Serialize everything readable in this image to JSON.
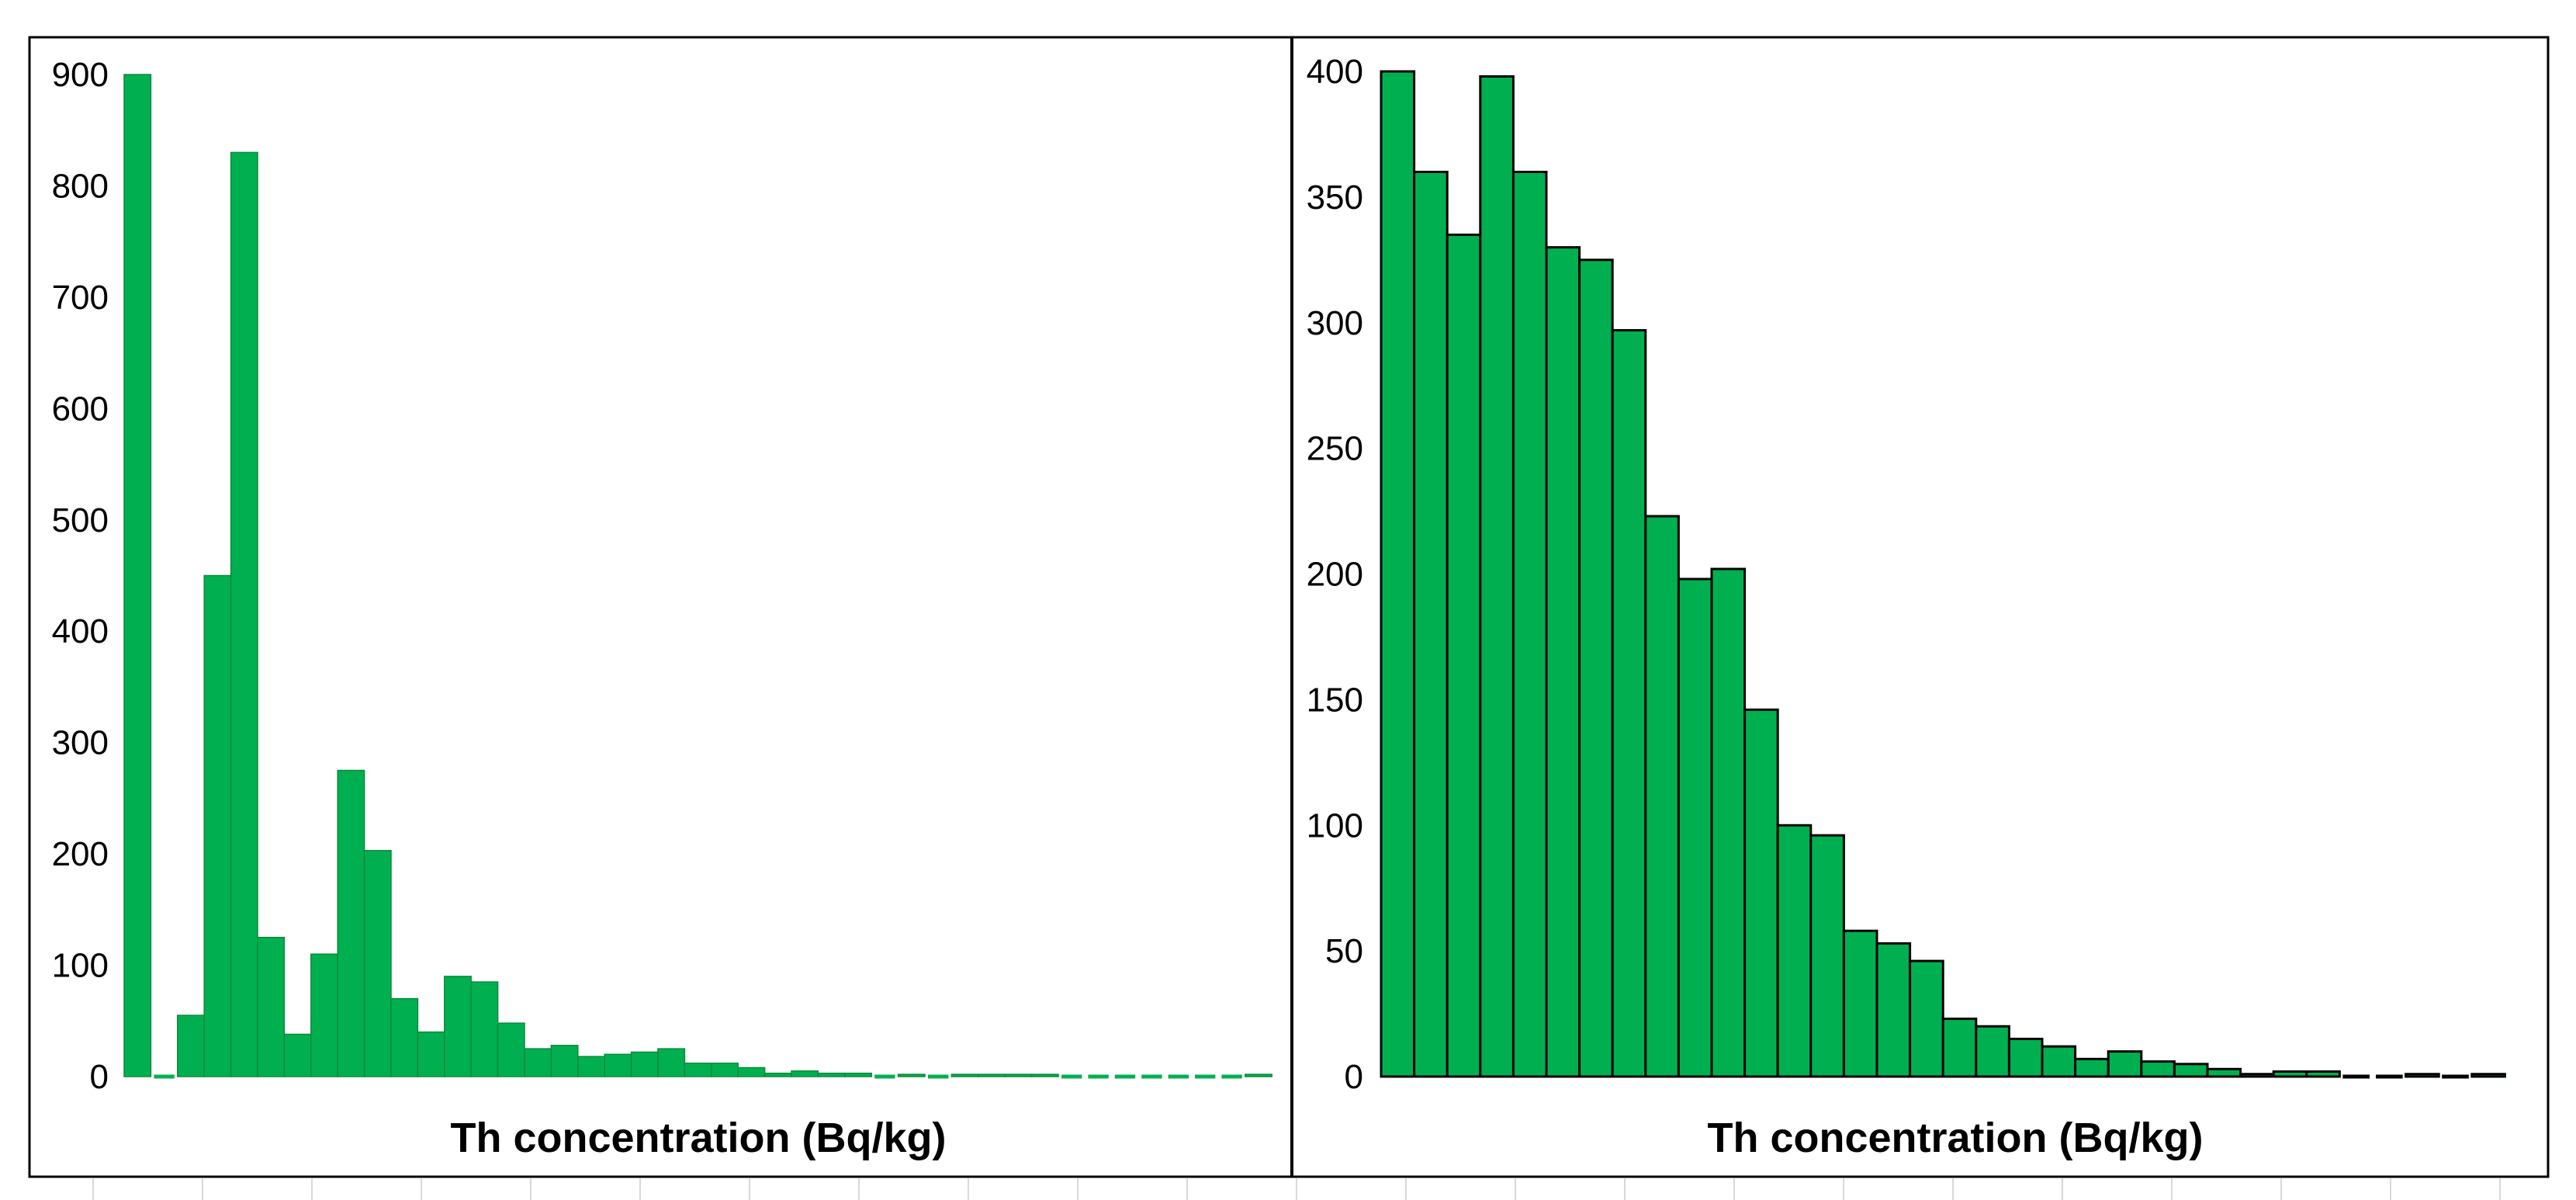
{
  "colors": {
    "bar_fill": "#00b050",
    "bar_edge_left": "#0a8a3a",
    "bar_edge_right": "#000000",
    "frame": "#000000",
    "gridline": "#d9d9d9",
    "text": "#000000"
  },
  "chart_data": [
    {
      "type": "bar",
      "xlabel": "Th concentration (Bq/kg)",
      "ylabel": "",
      "ylim": [
        0,
        900
      ],
      "yticks": [
        "900",
        "800",
        "700",
        "600",
        "500",
        "400",
        "300",
        "200",
        "100",
        "0"
      ],
      "grid": false,
      "x_tick_labels": false,
      "values": [
        900,
        0,
        55,
        450,
        830,
        125,
        38,
        110,
        275,
        203,
        70,
        40,
        90,
        85,
        48,
        25,
        28,
        18,
        20,
        22,
        25,
        12,
        12,
        8,
        3,
        5,
        3,
        3,
        0,
        2,
        0,
        2,
        2,
        2,
        2,
        0,
        0,
        0,
        0,
        0,
        0,
        0,
        2
      ]
    },
    {
      "type": "bar",
      "xlabel": "Th concentration (Bq/kg)",
      "ylabel": "",
      "ylim": [
        0,
        400
      ],
      "yticks": [
        "400",
        "350",
        "300",
        "250",
        "200",
        "150",
        "100",
        "50",
        "0"
      ],
      "grid": false,
      "x_tick_labels": false,
      "values": [
        400,
        360,
        335,
        398,
        360,
        330,
        325,
        297,
        223,
        198,
        202,
        146,
        100,
        96,
        58,
        53,
        46,
        23,
        20,
        15,
        12,
        7,
        10,
        6,
        5,
        3,
        1,
        2,
        2,
        0,
        0,
        1,
        0,
        1
      ]
    }
  ]
}
